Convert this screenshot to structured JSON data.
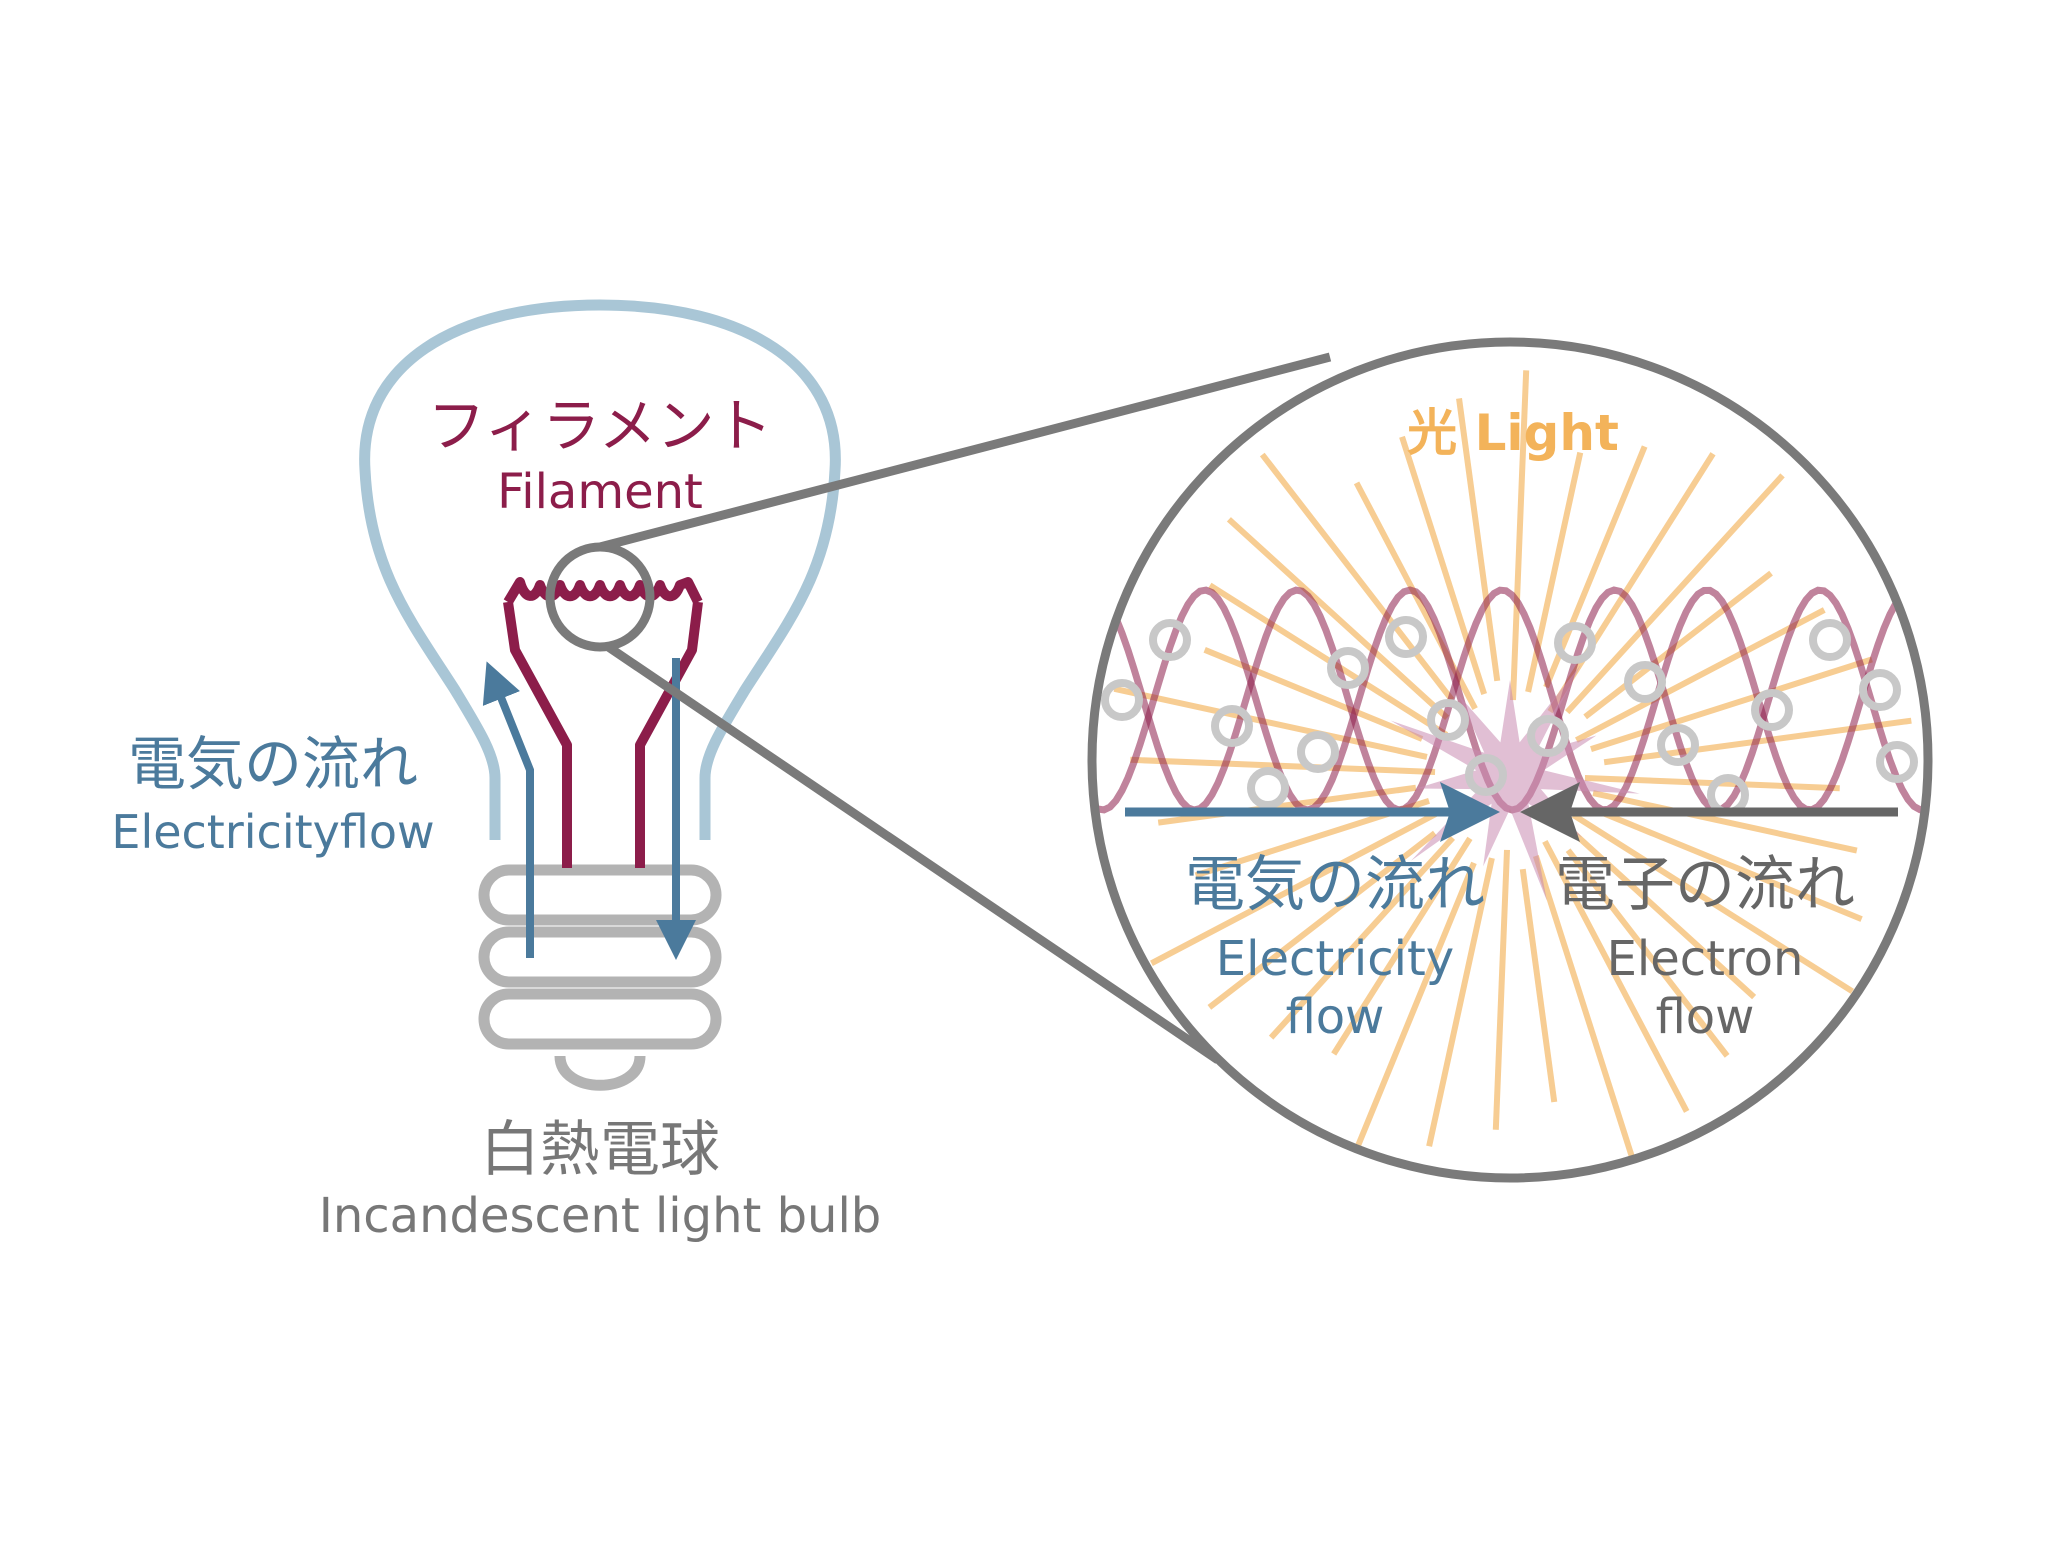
{
  "labels": {
    "filament_ja": "フィラメント",
    "filament_en": "Filament",
    "electricity_ja": "電気の流れ",
    "electricity_en": "Electricityflow",
    "bulb_ja": "白熱電球",
    "bulb_en": "Incandescent light bulb",
    "light_ja": "光",
    "light_en": "Light",
    "zoom_electricity_ja": "電気の流れ",
    "zoom_electricity_en_1": "Electricity",
    "zoom_electricity_en_2": "flow",
    "zoom_electron_ja": "電子の流れ",
    "zoom_electron_en_1": "Electron",
    "zoom_electron_en_2": "flow"
  },
  "colors": {
    "filament": "#8c1d4a",
    "electricity": "#4b7a9c",
    "bulb_glass": "#a9c6d6",
    "bulb_base": "#b3b3b3",
    "label_gray": "#777777",
    "light": "#f3b35a",
    "zoom_ring": "#7a7a7a",
    "electron_dots": "#c8c8c8",
    "burst": "#c98ab0",
    "electron_arrow": "#666666"
  }
}
